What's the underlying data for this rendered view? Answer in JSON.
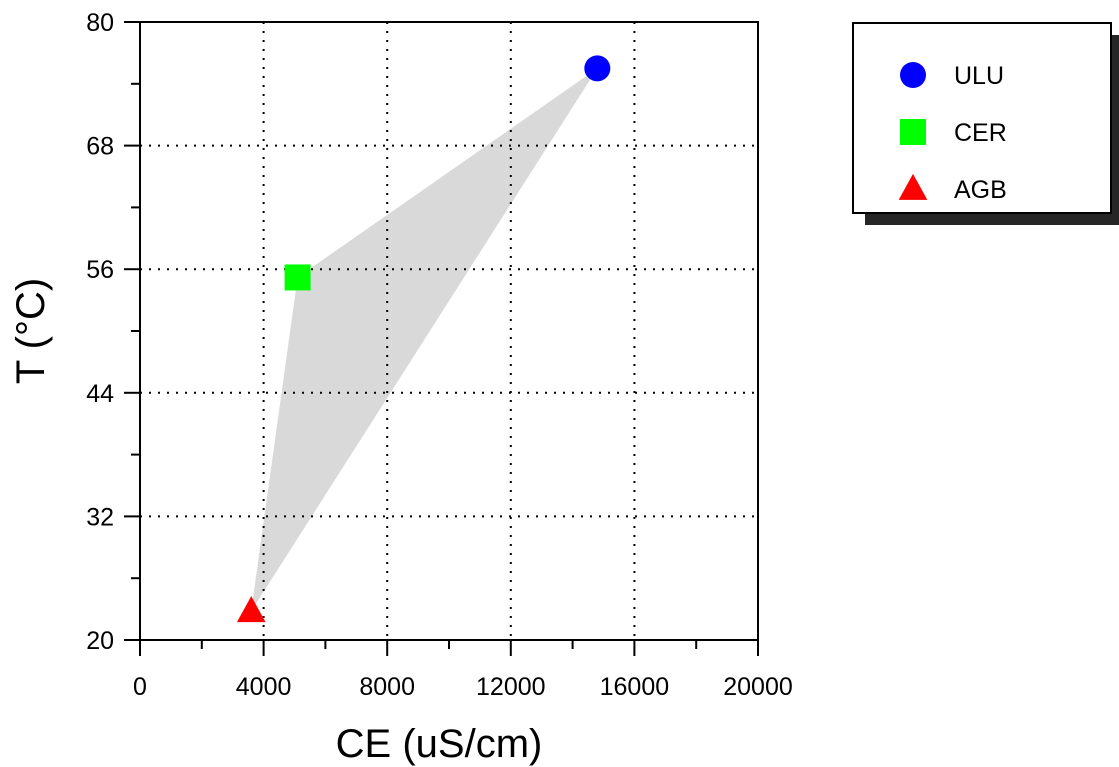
{
  "chart_data": {
    "type": "scatter",
    "title": "",
    "xlabel": "CE (uS/cm)",
    "ylabel": "T (°C)",
    "xlim": [
      0,
      20000
    ],
    "ylim": [
      20,
      80
    ],
    "x_ticks": [
      0,
      4000,
      8000,
      12000,
      16000,
      20000
    ],
    "y_ticks": [
      20,
      32,
      44,
      56,
      68,
      80
    ],
    "x_minor_step": 2000,
    "y_minor_step": 6,
    "grid": true,
    "grid_style": "dotted",
    "legend_position": "top-right outside plot",
    "hull_color": "#d9d9d9",
    "series": [
      {
        "name": "ULU",
        "marker": "circle",
        "color": "#0000ff",
        "x": 14800,
        "y": 75.5
      },
      {
        "name": "CER",
        "marker": "square",
        "color": "#00ff00",
        "x": 5100,
        "y": 55.2
      },
      {
        "name": "AGB",
        "marker": "triangle",
        "color": "#ff0000",
        "x": 3600,
        "y": 22.8
      }
    ]
  }
}
